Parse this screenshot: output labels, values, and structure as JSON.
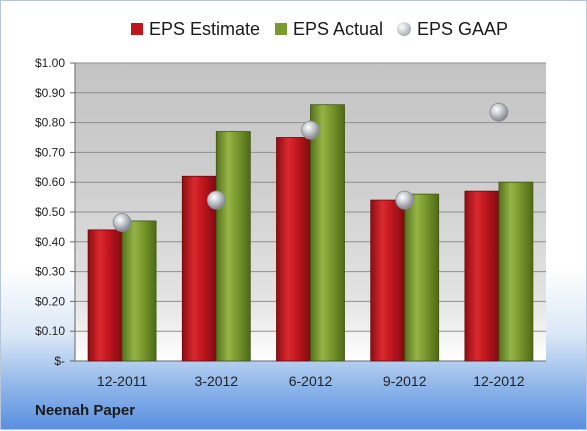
{
  "company": "Neenah Paper",
  "chart_data": {
    "type": "bar",
    "categories": [
      "12-2011",
      "3-2012",
      "6-2012",
      "9-2012",
      "12-2012"
    ],
    "series": [
      {
        "name": "EPS Estimate",
        "kind": "bar",
        "color": "#c0161e",
        "values": [
          0.44,
          0.62,
          0.75,
          0.54,
          0.57
        ]
      },
      {
        "name": "EPS Actual",
        "kind": "bar",
        "color": "#7a9a2f",
        "values": [
          0.47,
          0.77,
          0.86,
          0.56,
          0.6
        ]
      },
      {
        "name": "EPS GAAP",
        "kind": "marker",
        "color": "#b8bcc2",
        "values": [
          0.465,
          0.54,
          0.775,
          0.54,
          0.835
        ]
      }
    ],
    "yticks": [
      "$-",
      "$0.10",
      "$0.20",
      "$0.30",
      "$0.40",
      "$0.50",
      "$0.60",
      "$0.70",
      "$0.80",
      "$0.90",
      "$1.00"
    ],
    "ylim": [
      0,
      1.0
    ],
    "grid": true,
    "legend_position": "top"
  }
}
